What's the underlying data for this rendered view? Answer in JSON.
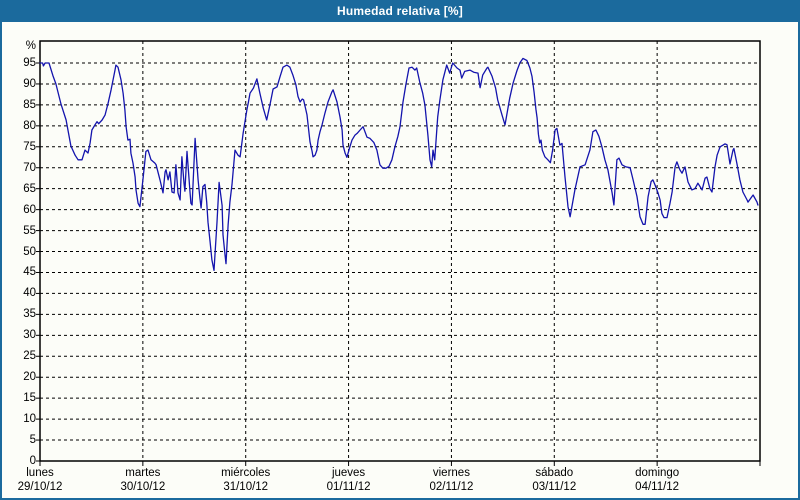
{
  "window": {
    "title": "Humedad relativa [%]",
    "title_bar_color": "#1b6a9d",
    "background_color": "#fcfdf8",
    "line_color": "#1414ad"
  },
  "chart_data": {
    "type": "line",
    "title": "Humedad relativa [%]",
    "ylabel": "%",
    "xlabel": "",
    "ylim": [
      0,
      100
    ],
    "xlim_hours": [
      0,
      168
    ],
    "grid": true,
    "legend": "none",
    "y_ticks": [
      0,
      5,
      10,
      15,
      20,
      25,
      30,
      35,
      40,
      45,
      50,
      55,
      60,
      65,
      70,
      75,
      80,
      85,
      90,
      95
    ],
    "x_axis": {
      "unit": "hours since lunes 29/10/12 00:00",
      "days": [
        {
          "name": "lunes",
          "date": "29/10/12"
        },
        {
          "name": "martes",
          "date": "30/10/12"
        },
        {
          "name": "miércoles",
          "date": "31/10/12"
        },
        {
          "name": "jueves",
          "date": "01/11/12"
        },
        {
          "name": "viernes",
          "date": "02/11/12"
        },
        {
          "name": "sábado",
          "date": "03/11/12"
        },
        {
          "name": "domingo",
          "date": "04/11/12"
        }
      ]
    },
    "series": [
      {
        "name": "Humedad relativa [%]",
        "points": [
          [
            0,
            95
          ],
          [
            0.6,
            95
          ],
          [
            0.8,
            94.3
          ],
          [
            1.2,
            95
          ],
          [
            2.1,
            95
          ],
          [
            3,
            92
          ],
          [
            3.7,
            90
          ],
          [
            4.9,
            85.2
          ],
          [
            6.1,
            81.4
          ],
          [
            7.2,
            75.2
          ],
          [
            8.2,
            73
          ],
          [
            8.9,
            71.9
          ],
          [
            9.8,
            71.9
          ],
          [
            10.5,
            74.2
          ],
          [
            11.2,
            73.5
          ],
          [
            11.7,
            75.9
          ],
          [
            12.1,
            79
          ],
          [
            12.8,
            80.2
          ],
          [
            13.3,
            81
          ],
          [
            13.7,
            80.5
          ],
          [
            14.5,
            81.4
          ],
          [
            15.2,
            82.6
          ],
          [
            15.9,
            85.4
          ],
          [
            16.6,
            88.6
          ],
          [
            17.5,
            93.3
          ],
          [
            17.7,
            94.5
          ],
          [
            18.2,
            94
          ],
          [
            18.9,
            91
          ],
          [
            19.4,
            87.8
          ],
          [
            19.8,
            83.8
          ],
          [
            20.1,
            79.8
          ],
          [
            20.5,
            76.6
          ],
          [
            21,
            76.8
          ],
          [
            21.2,
            73.5
          ],
          [
            21.7,
            71.1
          ],
          [
            22.2,
            67.8
          ],
          [
            22.4,
            64.7
          ],
          [
            22.9,
            61.5
          ],
          [
            23.3,
            60.7
          ],
          [
            24,
            67.1
          ],
          [
            24.7,
            73.9
          ],
          [
            25.2,
            74.2
          ],
          [
            25.9,
            71.9
          ],
          [
            26.8,
            71.1
          ],
          [
            27.1,
            70.7
          ],
          [
            28,
            67.1
          ],
          [
            28.7,
            64
          ],
          [
            29.2,
            69
          ],
          [
            29.4,
            69.5
          ],
          [
            29.9,
            67.1
          ],
          [
            30.3,
            69
          ],
          [
            30.8,
            64.2
          ],
          [
            31.3,
            64
          ],
          [
            31.7,
            70.7
          ],
          [
            32.2,
            64
          ],
          [
            32.7,
            62.3
          ],
          [
            33.1,
            72.6
          ],
          [
            33.6,
            66.3
          ],
          [
            33.8,
            64.4
          ],
          [
            34.3,
            73.9
          ],
          [
            35,
            64.2
          ],
          [
            35.2,
            61.5
          ],
          [
            35.5,
            61.1
          ],
          [
            36.2,
            77
          ],
          [
            36.9,
            67.1
          ],
          [
            37.3,
            62.8
          ],
          [
            37.6,
            60.4
          ],
          [
            38,
            65.5
          ],
          [
            38.5,
            66
          ],
          [
            38.9,
            61.8
          ],
          [
            39.2,
            57
          ],
          [
            39.7,
            52.3
          ],
          [
            40.1,
            48
          ],
          [
            40.6,
            45.5
          ],
          [
            41.3,
            57
          ],
          [
            41.8,
            66.5
          ],
          [
            42.5,
            61
          ],
          [
            42.7,
            54
          ],
          [
            43.2,
            49
          ],
          [
            43.4,
            47.1
          ],
          [
            43.9,
            56.3
          ],
          [
            44.3,
            61.8
          ],
          [
            44.8,
            66
          ],
          [
            45.5,
            74.2
          ],
          [
            46.2,
            73
          ],
          [
            46.7,
            72.6
          ],
          [
            47.4,
            78.2
          ],
          [
            48.3,
            84
          ],
          [
            48.6,
            85.5
          ],
          [
            49,
            87.8
          ],
          [
            49.8,
            89
          ],
          [
            50.6,
            91.2
          ],
          [
            51.3,
            87.8
          ],
          [
            52.1,
            84.2
          ],
          [
            52.9,
            81.4
          ],
          [
            53.7,
            85.2
          ],
          [
            54.4,
            88.8
          ],
          [
            55.3,
            89.3
          ],
          [
            56,
            91.7
          ],
          [
            56.7,
            94
          ],
          [
            57.6,
            94.5
          ],
          [
            58.3,
            94
          ],
          [
            59,
            92.1
          ],
          [
            59.7,
            89.8
          ],
          [
            60.2,
            87
          ],
          [
            60.7,
            85.7
          ],
          [
            61.2,
            86.4
          ],
          [
            61.5,
            86.2
          ],
          [
            62.3,
            82.6
          ],
          [
            62.6,
            79.8
          ],
          [
            63,
            76.2
          ],
          [
            63.5,
            73.9
          ],
          [
            63.7,
            72.6
          ],
          [
            64.2,
            73
          ],
          [
            64.6,
            74.2
          ],
          [
            64.9,
            76.6
          ],
          [
            65.3,
            78.5
          ],
          [
            65.8,
            80.2
          ],
          [
            66.5,
            83.1
          ],
          [
            67.2,
            85.7
          ],
          [
            68.1,
            88.1
          ],
          [
            68.4,
            88.6
          ],
          [
            69.3,
            85.7
          ],
          [
            70,
            82.1
          ],
          [
            70.5,
            79
          ],
          [
            70.7,
            75.4
          ],
          [
            71.2,
            73.5
          ],
          [
            71.6,
            72.5
          ],
          [
            72.3,
            75
          ],
          [
            72.8,
            76.6
          ],
          [
            73.5,
            77.8
          ],
          [
            74,
            78.2
          ],
          [
            74.7,
            79
          ],
          [
            75.4,
            79.8
          ],
          [
            76.3,
            77.3
          ],
          [
            77,
            77
          ],
          [
            77.9,
            76
          ],
          [
            78.6,
            74.2
          ],
          [
            79.3,
            70.7
          ],
          [
            80,
            69.9
          ],
          [
            80.7,
            69.9
          ],
          [
            81.4,
            70.3
          ],
          [
            82.1,
            71.9
          ],
          [
            82.8,
            75
          ],
          [
            83.5,
            77.5
          ],
          [
            84,
            79.8
          ],
          [
            84.7,
            85.7
          ],
          [
            85.4,
            90
          ],
          [
            86.1,
            93.8
          ],
          [
            86.8,
            94
          ],
          [
            87.5,
            93.3
          ],
          [
            87.9,
            93.8
          ],
          [
            88.6,
            90.5
          ],
          [
            89.3,
            87.8
          ],
          [
            89.8,
            85
          ],
          [
            90.5,
            77.8
          ],
          [
            91,
            71.9
          ],
          [
            91.4,
            70.2
          ],
          [
            91.7,
            74.2
          ],
          [
            92.1,
            71.9
          ],
          [
            92.8,
            82.1
          ],
          [
            93.3,
            86.2
          ],
          [
            94,
            91
          ],
          [
            94.9,
            94.5
          ],
          [
            95.6,
            92.6
          ],
          [
            96.3,
            95
          ],
          [
            97.3,
            93.8
          ],
          [
            98,
            93.3
          ],
          [
            98.4,
            91.4
          ],
          [
            99.1,
            93
          ],
          [
            100.3,
            93.3
          ],
          [
            101.2,
            92.8
          ],
          [
            102.2,
            92.6
          ],
          [
            102.7,
            89.1
          ],
          [
            103.3,
            92.1
          ],
          [
            104.3,
            93.8
          ],
          [
            104.5,
            94
          ],
          [
            105.5,
            91.8
          ],
          [
            106.3,
            89
          ],
          [
            106.8,
            86.2
          ],
          [
            107.8,
            82.6
          ],
          [
            108.5,
            80.2
          ],
          [
            109.6,
            86.6
          ],
          [
            110.4,
            90.2
          ],
          [
            111.3,
            93.2
          ],
          [
            112,
            95.1
          ],
          [
            112.7,
            96.1
          ],
          [
            113.6,
            95.6
          ],
          [
            114.3,
            93.8
          ],
          [
            114.8,
            91.8
          ],
          [
            115.3,
            88
          ],
          [
            115.7,
            84
          ],
          [
            116,
            81.9
          ],
          [
            116.3,
            78
          ],
          [
            116.6,
            75.9
          ],
          [
            116.9,
            76.6
          ],
          [
            117.2,
            74.2
          ],
          [
            117.8,
            72.6
          ],
          [
            118.5,
            71.9
          ],
          [
            119.1,
            71.2
          ],
          [
            119.6,
            74.2
          ],
          [
            120.2,
            79
          ],
          [
            120.6,
            79.4
          ],
          [
            121.3,
            75.4
          ],
          [
            121.8,
            75.8
          ],
          [
            122.5,
            67.8
          ],
          [
            123.2,
            60.7
          ],
          [
            123.7,
            58.3
          ],
          [
            124.8,
            64.7
          ],
          [
            126,
            70.2
          ],
          [
            127.2,
            70.7
          ],
          [
            128.3,
            74.2
          ],
          [
            129,
            78.6
          ],
          [
            129.7,
            79
          ],
          [
            130.4,
            77.5
          ],
          [
            131.1,
            75
          ],
          [
            131.8,
            71.9
          ],
          [
            132.5,
            69.5
          ],
          [
            133.5,
            64
          ],
          [
            133.9,
            61.1
          ],
          [
            134.6,
            71.9
          ],
          [
            135.1,
            72.3
          ],
          [
            135.8,
            70.7
          ],
          [
            136.7,
            70.2
          ],
          [
            137.7,
            70
          ],
          [
            138.4,
            67.1
          ],
          [
            139.3,
            63.1
          ],
          [
            140,
            58.3
          ],
          [
            140.7,
            56.5
          ],
          [
            141.2,
            56.5
          ],
          [
            141.9,
            63.1
          ],
          [
            142.6,
            66.7
          ],
          [
            143,
            67.1
          ],
          [
            143.5,
            65.9
          ],
          [
            144.2,
            64
          ],
          [
            144.7,
            62.3
          ],
          [
            145.1,
            59.1
          ],
          [
            145.6,
            58.1
          ],
          [
            146.3,
            58.1
          ],
          [
            147,
            61.5
          ],
          [
            147.5,
            64.2
          ],
          [
            148.2,
            70.2
          ],
          [
            148.6,
            71.4
          ],
          [
            149.3,
            69.5
          ],
          [
            149.8,
            68.7
          ],
          [
            150.5,
            70.2
          ],
          [
            151.2,
            66.6
          ],
          [
            152.1,
            64.7
          ],
          [
            152.8,
            65
          ],
          [
            153.3,
            65.9
          ],
          [
            153.5,
            66.3
          ],
          [
            154.5,
            64.7
          ],
          [
            155.2,
            67.5
          ],
          [
            155.6,
            67.8
          ],
          [
            156.3,
            65
          ],
          [
            156.8,
            64.2
          ],
          [
            157.5,
            70.2
          ],
          [
            158,
            73
          ],
          [
            158.7,
            75
          ],
          [
            159.4,
            75.4
          ],
          [
            159.8,
            75.7
          ],
          [
            160.3,
            75.5
          ],
          [
            161,
            70.9
          ],
          [
            161.7,
            74.2
          ],
          [
            161.9,
            74.6
          ],
          [
            162.6,
            71
          ],
          [
            163.3,
            67.1
          ],
          [
            164,
            64.2
          ],
          [
            165,
            62.3
          ],
          [
            165.2,
            61.8
          ],
          [
            166.1,
            63.1
          ],
          [
            166.4,
            63.5
          ],
          [
            167.3,
            61.8
          ],
          [
            167.5,
            61.1
          ]
        ]
      }
    ]
  }
}
